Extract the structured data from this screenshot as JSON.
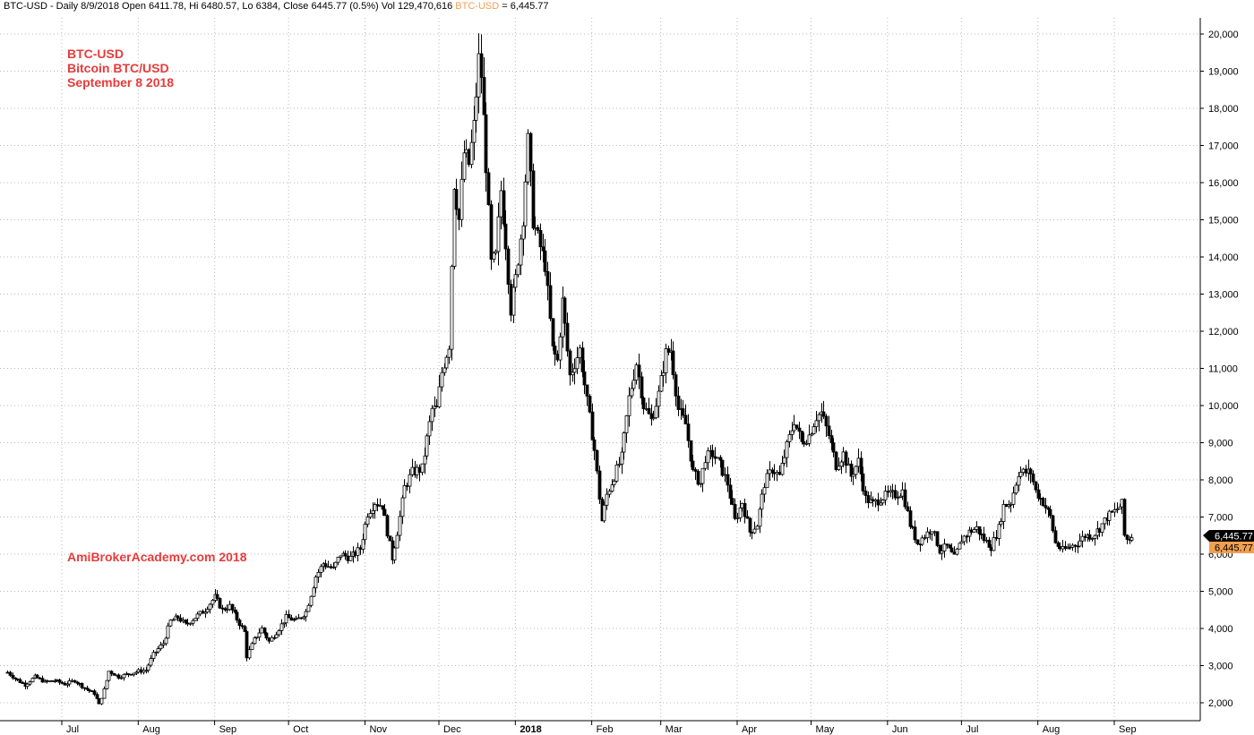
{
  "header": {
    "text_prefix": "BTC-USD - Daily 8/9/2018 Open 6411.78, Hi 6480.57, Lo 6384, Close 6445.77 (0.5%) Vol 129,470,616 ",
    "symbol_label": "BTC-USD",
    "text_suffix": " = 6,445.77"
  },
  "overlay": {
    "line1": "BTC-USD",
    "line2": "Bitcoin BTC/USD",
    "line3": "September 8 2018",
    "watermark": "AmiBrokerAcademy.com  2018"
  },
  "price_tags": {
    "last_close": "6,445.77",
    "symbol_close": "6,445.77",
    "last_color": "#000000",
    "symbol_color": "#f0a050"
  },
  "colors": {
    "annotation": "#e83b3b",
    "grid": "#b8b8b8",
    "candle": "#000000",
    "background": "#ffffff"
  },
  "chart_data": {
    "type": "candlestick",
    "title": "",
    "xlabel": "",
    "ylabel": "",
    "y_ticks": [
      2000,
      3000,
      4000,
      5000,
      6000,
      7000,
      8000,
      9000,
      10000,
      11000,
      12000,
      13000,
      14000,
      15000,
      16000,
      17000,
      18000,
      19000,
      20000
    ],
    "y_tick_labels": [
      "2,000",
      "3,000",
      "4,000",
      "5,000",
      "6,000",
      "7,000",
      "8,000",
      "9,000",
      "10,000",
      "11,000",
      "12,000",
      "13,000",
      "14,000",
      "15,000",
      "16,000",
      "17,000",
      "18,000",
      "19,000",
      "20,000"
    ],
    "x_ticks": [
      {
        "label": "Jul",
        "date": "2017-07-01"
      },
      {
        "label": "Aug",
        "date": "2017-08-01"
      },
      {
        "label": "Sep",
        "date": "2017-09-01"
      },
      {
        "label": "Oct",
        "date": "2017-10-01"
      },
      {
        "label": "Nov",
        "date": "2017-11-01"
      },
      {
        "label": "Dec",
        "date": "2017-12-01"
      },
      {
        "label": "2018",
        "date": "2018-01-01",
        "bold": true
      },
      {
        "label": "Feb",
        "date": "2018-02-01"
      },
      {
        "label": "Mar",
        "date": "2018-03-01"
      },
      {
        "label": "Apr",
        "date": "2018-04-01"
      },
      {
        "label": "May",
        "date": "2018-05-01"
      },
      {
        "label": "Jun",
        "date": "2018-06-01"
      },
      {
        "label": "Jul",
        "date": "2018-07-01"
      },
      {
        "label": "Aug",
        "date": "2018-08-01"
      },
      {
        "label": "Sep",
        "date": "2018-09-01"
      }
    ],
    "grid": true,
    "last_close": 6445.77,
    "close_series": [
      [
        "2017-06-09",
        2820
      ],
      [
        "2017-06-12",
        2650
      ],
      [
        "2017-06-16",
        2480
      ],
      [
        "2017-06-20",
        2700
      ],
      [
        "2017-06-24",
        2560
      ],
      [
        "2017-06-28",
        2600
      ],
      [
        "2017-07-02",
        2500
      ],
      [
        "2017-07-06",
        2600
      ],
      [
        "2017-07-10",
        2400
      ],
      [
        "2017-07-14",
        2250
      ],
      [
        "2017-07-16",
        1950
      ],
      [
        "2017-07-18",
        2350
      ],
      [
        "2017-07-20",
        2850
      ],
      [
        "2017-07-24",
        2700
      ],
      [
        "2017-07-28",
        2780
      ],
      [
        "2017-08-01",
        2850
      ],
      [
        "2017-08-04",
        2880
      ],
      [
        "2017-08-07",
        3300
      ],
      [
        "2017-08-11",
        3600
      ],
      [
        "2017-08-14",
        4200
      ],
      [
        "2017-08-17",
        4300
      ],
      [
        "2017-08-20",
        4100
      ],
      [
        "2017-08-24",
        4300
      ],
      [
        "2017-08-28",
        4500
      ],
      [
        "2017-09-01",
        4850
      ],
      [
        "2017-09-04",
        4500
      ],
      [
        "2017-09-07",
        4600
      ],
      [
        "2017-09-10",
        4250
      ],
      [
        "2017-09-13",
        3900
      ],
      [
        "2017-09-14",
        3250
      ],
      [
        "2017-09-17",
        3700
      ],
      [
        "2017-09-20",
        4000
      ],
      [
        "2017-09-23",
        3650
      ],
      [
        "2017-09-26",
        3900
      ],
      [
        "2017-09-30",
        4300
      ],
      [
        "2017-10-04",
        4200
      ],
      [
        "2017-10-08",
        4450
      ],
      [
        "2017-10-12",
        5400
      ],
      [
        "2017-10-15",
        5750
      ],
      [
        "2017-10-19",
        5600
      ],
      [
        "2017-10-22",
        6000
      ],
      [
        "2017-10-26",
        5900
      ],
      [
        "2017-10-30",
        6150
      ],
      [
        "2017-11-02",
        7100
      ],
      [
        "2017-11-05",
        7400
      ],
      [
        "2017-11-08",
        7300
      ],
      [
        "2017-11-10",
        6600
      ],
      [
        "2017-11-12",
        5900
      ],
      [
        "2017-11-14",
        6600
      ],
      [
        "2017-11-17",
        7800
      ],
      [
        "2017-11-20",
        8200
      ],
      [
        "2017-11-24",
        8300
      ],
      [
        "2017-11-28",
        9900
      ],
      [
        "2017-11-30",
        9900
      ],
      [
        "2017-12-02",
        10900
      ],
      [
        "2017-12-05",
        11650
      ],
      [
        "2017-12-07",
        16000
      ],
      [
        "2017-12-09",
        15000
      ],
      [
        "2017-12-11",
        16800
      ],
      [
        "2017-12-13",
        16500
      ],
      [
        "2017-12-15",
        17500
      ],
      [
        "2017-12-17",
        19300
      ],
      [
        "2017-12-18",
        18900
      ],
      [
        "2017-12-20",
        16500
      ],
      [
        "2017-12-22",
        13800
      ],
      [
        "2017-12-24",
        14000
      ],
      [
        "2017-12-26",
        15800
      ],
      [
        "2017-12-28",
        14400
      ],
      [
        "2017-12-30",
        12600
      ],
      [
        "2018-01-01",
        13400
      ],
      [
        "2018-01-04",
        15100
      ],
      [
        "2018-01-06",
        17100
      ],
      [
        "2018-01-08",
        15000
      ],
      [
        "2018-01-10",
        14500
      ],
      [
        "2018-01-13",
        13800
      ],
      [
        "2018-01-16",
        11500
      ],
      [
        "2018-01-18",
        11200
      ],
      [
        "2018-01-20",
        12800
      ],
      [
        "2018-01-23",
        10800
      ],
      [
        "2018-01-27",
        11500
      ],
      [
        "2018-01-30",
        10100
      ],
      [
        "2018-02-02",
        8800
      ],
      [
        "2018-02-05",
        6900
      ],
      [
        "2018-02-07",
        7600
      ],
      [
        "2018-02-10",
        8100
      ],
      [
        "2018-02-13",
        8600
      ],
      [
        "2018-02-16",
        10200
      ],
      [
        "2018-02-19",
        11150
      ],
      [
        "2018-02-22",
        10000
      ],
      [
        "2018-02-25",
        9600
      ],
      [
        "2018-02-28",
        10300
      ],
      [
        "2018-03-03",
        11400
      ],
      [
        "2018-03-05",
        11500
      ],
      [
        "2018-03-08",
        9900
      ],
      [
        "2018-03-11",
        9500
      ],
      [
        "2018-03-14",
        8200
      ],
      [
        "2018-03-17",
        7900
      ],
      [
        "2018-03-19",
        8600
      ],
      [
        "2018-03-22",
        8700
      ],
      [
        "2018-03-25",
        8400
      ],
      [
        "2018-03-28",
        7900
      ],
      [
        "2018-03-31",
        6900
      ],
      [
        "2018-04-03",
        7400
      ],
      [
        "2018-04-06",
        6600
      ],
      [
        "2018-04-09",
        6800
      ],
      [
        "2018-04-12",
        7900
      ],
      [
        "2018-04-15",
        8300
      ],
      [
        "2018-04-18",
        8100
      ],
      [
        "2018-04-21",
        8900
      ],
      [
        "2018-04-24",
        9600
      ],
      [
        "2018-04-27",
        9000
      ],
      [
        "2018-04-30",
        9200
      ],
      [
        "2018-05-03",
        9700
      ],
      [
        "2018-05-05",
        9800
      ],
      [
        "2018-05-08",
        9200
      ],
      [
        "2018-05-11",
        8400
      ],
      [
        "2018-05-14",
        8700
      ],
      [
        "2018-05-17",
        8100
      ],
      [
        "2018-05-20",
        8500
      ],
      [
        "2018-05-23",
        7500
      ],
      [
        "2018-05-26",
        7350
      ],
      [
        "2018-05-29",
        7500
      ],
      [
        "2018-06-01",
        7600
      ],
      [
        "2018-06-04",
        7600
      ],
      [
        "2018-06-07",
        7700
      ],
      [
        "2018-06-10",
        6800
      ],
      [
        "2018-06-13",
        6300
      ],
      [
        "2018-06-16",
        6500
      ],
      [
        "2018-06-19",
        6700
      ],
      [
        "2018-06-22",
        6100
      ],
      [
        "2018-06-25",
        6200
      ],
      [
        "2018-06-28",
        5900
      ],
      [
        "2018-07-01",
        6400
      ],
      [
        "2018-07-04",
        6600
      ],
      [
        "2018-07-07",
        6700
      ],
      [
        "2018-07-10",
        6400
      ],
      [
        "2018-07-13",
        6200
      ],
      [
        "2018-07-16",
        6700
      ],
      [
        "2018-07-18",
        7300
      ],
      [
        "2018-07-21",
        7400
      ],
      [
        "2018-07-24",
        8200
      ],
      [
        "2018-07-27",
        8200
      ],
      [
        "2018-07-29",
        8200
      ],
      [
        "2018-07-31",
        7700
      ],
      [
        "2018-08-03",
        7400
      ],
      [
        "2018-08-06",
        7000
      ],
      [
        "2018-08-08",
        6300
      ],
      [
        "2018-08-11",
        6100
      ],
      [
        "2018-08-14",
        6200
      ],
      [
        "2018-08-17",
        6300
      ],
      [
        "2018-08-20",
        6500
      ],
      [
        "2018-08-23",
        6500
      ],
      [
        "2018-08-26",
        6700
      ],
      [
        "2018-08-29",
        7000
      ],
      [
        "2018-09-01",
        7150
      ],
      [
        "2018-09-04",
        7350
      ],
      [
        "2018-09-05",
        6500
      ],
      [
        "2018-09-06",
        6400
      ],
      [
        "2018-09-08",
        6445.77
      ]
    ]
  }
}
